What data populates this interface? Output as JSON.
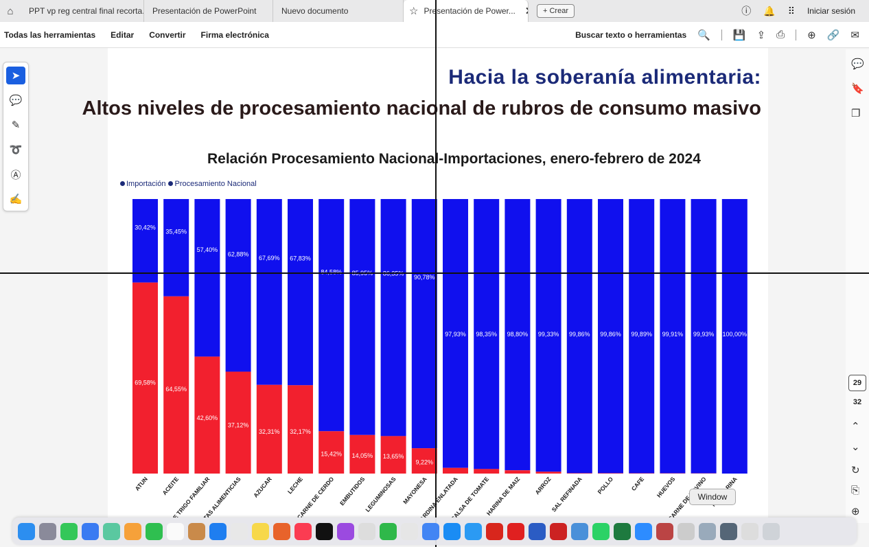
{
  "tabs": [
    {
      "label": "PPT vp reg central final recorta...",
      "active": false
    },
    {
      "label": "Presentación de PowerPoint",
      "active": false
    },
    {
      "label": "Nuevo documento",
      "active": false
    },
    {
      "label": "Presentación de Power...",
      "active": true
    }
  ],
  "new_button": "+ Crear",
  "signin": "Iniciar sesión",
  "menu": [
    "Todas las herramientas",
    "Editar",
    "Convertir",
    "Firma electrónica"
  ],
  "search_label": "Buscar texto o herramientas",
  "page_current": "29",
  "page_total": "32",
  "tooltip": "Window",
  "slide": {
    "title_line1": "Hacia la soberanía alimentaria:",
    "title_line2": "Altos niveles de procesamiento nacional de rubros de consumo masivo",
    "chart_title": "Relación Procesamiento Nacional-Importaciones, enero-febrero de 2024",
    "legend_import": "Importación",
    "legend_national": "Procesamiento Nacional"
  },
  "colors": {
    "import": "#f2202e",
    "national": "#1010ee"
  },
  "chart_data": {
    "type": "bar",
    "stacked": true,
    "title": "Relación Procesamiento Nacional-Importaciones, enero-febrero de 2024",
    "categories": [
      "ATUN",
      "ACEITE",
      "HARINA DE TRIGO FAMILIAR",
      "PASTAS ALIMENTICIAS",
      "AZUCAR",
      "LECHE",
      "CARNE DE CERDO",
      "EMBUTIDOS",
      "LEGUMINOSAS",
      "MAYONESA",
      "SARDINA ENLATADA",
      "SALSA DE TOMATE",
      "HARINA DE MAIZ",
      "ARROZ",
      "SAL REFINADA",
      "POLLO",
      "CAFE",
      "HUEVOS",
      "CARNE DE BOVINO",
      "MARGARINA"
    ],
    "series": [
      {
        "name": "Importación",
        "values": [
          69.58,
          64.55,
          42.6,
          37.12,
          32.31,
          32.17,
          15.42,
          14.05,
          13.65,
          9.22,
          2.07,
          1.65,
          1.2,
          0.67,
          0.14,
          0.14,
          0.11,
          0.09,
          0.07,
          0.0
        ],
        "labels": [
          "69,58%",
          "64,55%",
          "42,60%",
          "37,12%",
          "32,31%",
          "32,17%",
          "15,42%",
          "14,05%",
          "13,65%",
          "9,22%",
          "",
          "",
          "",
          "",
          "",
          "",
          "",
          "",
          "",
          ""
        ]
      },
      {
        "name": "Procesamiento Nacional",
        "values": [
          30.42,
          35.45,
          57.4,
          62.88,
          67.69,
          67.83,
          84.58,
          85.95,
          86.35,
          90.78,
          97.93,
          98.35,
          98.8,
          99.33,
          99.86,
          99.86,
          99.89,
          99.91,
          99.93,
          100.0
        ],
        "labels": [
          "30,42%",
          "35,45%",
          "57,40%",
          "62,88%",
          "67,69%",
          "67,83%",
          "84,58%",
          "85,95%",
          "86,35%",
          "90,78%",
          "97,93%",
          "98,35%",
          "98,80%",
          "99,33%",
          "99,86%",
          "99,86%",
          "99,89%",
          "99,91%",
          "99,93%",
          "100,00%"
        ]
      }
    ],
    "ylim": [
      0,
      100
    ],
    "legend": "top-left",
    "grid": false
  }
}
